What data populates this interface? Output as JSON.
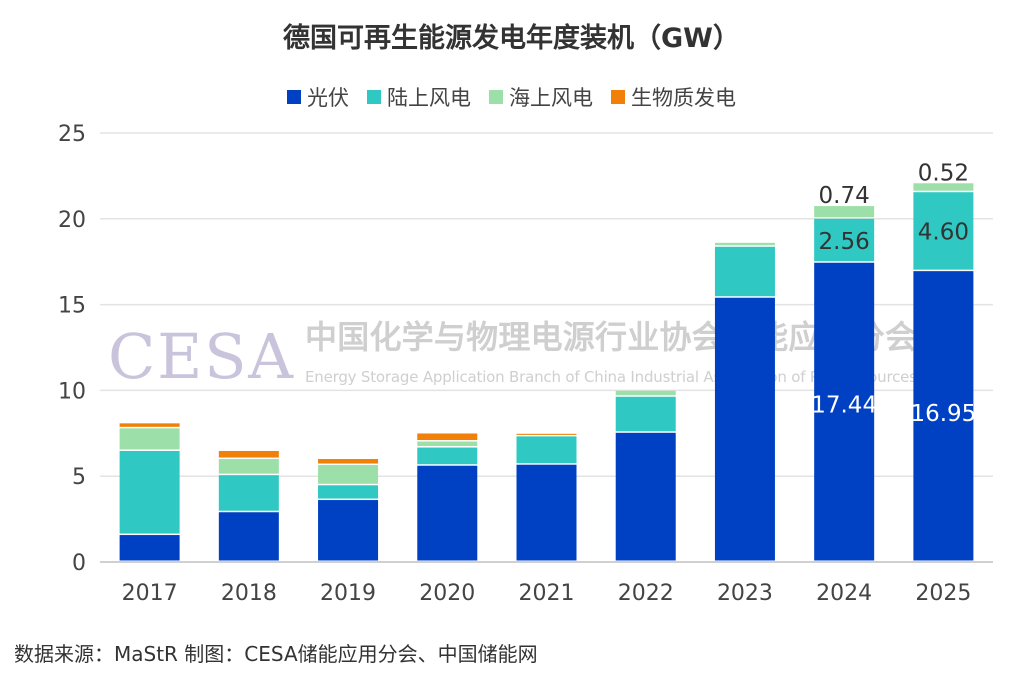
{
  "chart_data": {
    "type": "bar",
    "stacked": true,
    "title": "德国可再生能源发电年度装机（GW）",
    "xlabel": "",
    "ylabel": "",
    "ylim": [
      0,
      25
    ],
    "yticks": [
      0,
      5,
      10,
      15,
      20,
      25
    ],
    "grid": true,
    "legend_position": "top",
    "categories": [
      "2017",
      "2018",
      "2019",
      "2020",
      "2021",
      "2022",
      "2023",
      "2024",
      "2025"
    ],
    "series": [
      {
        "name": "光伏",
        "color": "#0041c4",
        "values": [
          1.57,
          2.9,
          3.61,
          5.61,
          5.67,
          7.53,
          15.4,
          17.44,
          16.95
        ]
      },
      {
        "name": "陆上风电",
        "color": "#2fc8c2",
        "values": [
          4.9,
          2.16,
          0.86,
          1.06,
          1.65,
          2.1,
          2.97,
          2.56,
          4.6
        ]
      },
      {
        "name": "海上风电",
        "color": "#9ddfa8",
        "values": [
          1.32,
          0.94,
          1.18,
          0.35,
          0.0,
          0.35,
          0.23,
          0.74,
          0.52
        ]
      },
      {
        "name": "生物质发电",
        "color": "#f08008",
        "values": [
          0.29,
          0.47,
          0.35,
          0.47,
          0.15,
          0.0,
          0.0,
          0.0,
          0.0
        ]
      }
    ],
    "data_labels": [
      {
        "category": "2024",
        "series": "光伏",
        "text": "17.44",
        "color": "#ffffff"
      },
      {
        "category": "2024",
        "series": "陆上风电",
        "text": "2.56",
        "color": "#333333"
      },
      {
        "category": "2024",
        "series": "海上风电",
        "text": "0.74",
        "color": "#333333"
      },
      {
        "category": "2025",
        "series": "光伏",
        "text": "16.95",
        "color": "#ffffff"
      },
      {
        "category": "2025",
        "series": "陆上风电",
        "text": "4.60",
        "color": "#333333"
      },
      {
        "category": "2025",
        "series": "海上风电",
        "text": "0.52",
        "color": "#333333"
      }
    ]
  },
  "watermark": {
    "logo": "CESA",
    "cn": "中国化学与物理电源行业协会储能应用分会",
    "en": "Energy Storage Application Branch of China Industrial Association of Power Sources"
  },
  "footer": "数据来源：MaStR  制图：CESA储能应用分会、中国储能网"
}
